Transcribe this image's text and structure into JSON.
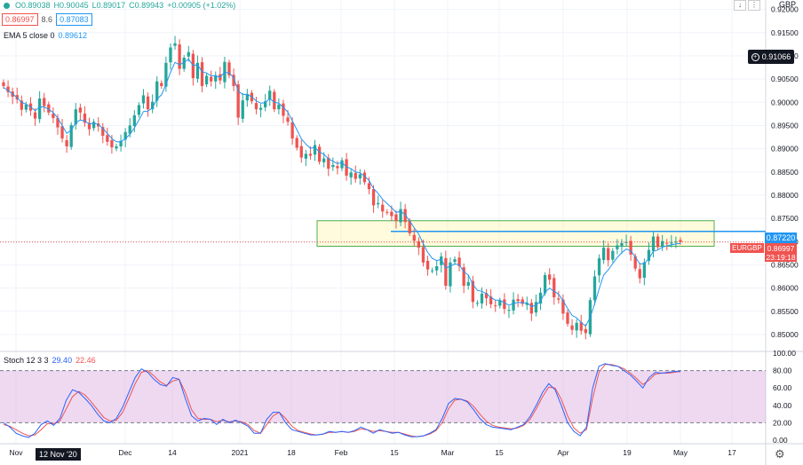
{
  "header": {
    "ohlc": {
      "open": "O0.89038",
      "high": "H0.90045",
      "low": "L0.89017",
      "close": "C0.89943",
      "change": "+0.00905 (+1.02%)"
    },
    "bid_box": "0.86997",
    "spread": "8.6",
    "ask_box": "0.87083",
    "ema_label": "EMA 5 close 0",
    "ema_value": "0.89612",
    "currency": "GBP",
    "down_arrow": "↓",
    "more": "⋮"
  },
  "indicator": {
    "label": "Stoch 12 3 3",
    "k_value": "29.40",
    "d_value": "22.46"
  },
  "price_badge": "0.91066",
  "line_tag": "0.87220",
  "price_tag": "0.86997",
  "countdown": "23:19:18",
  "symbol_tag": "EURGBP",
  "crosshair_date": "12 Nov '20",
  "colors": {
    "up": "#26a69a",
    "down": "#ef5350",
    "ema": "#2196f3",
    "stoch_k": "#2962ff",
    "stoch_d": "#ef5350",
    "band": "#e1bee7"
  },
  "chart_data": [
    {
      "type": "candlestick",
      "symbol": "EURGBP",
      "ylim": [
        0.8475,
        0.9205
      ],
      "yticks": [
        "0.92000",
        "0.91500",
        "0.91000",
        "0.90500",
        "0.90000",
        "0.89500",
        "0.89000",
        "0.88500",
        "0.88000",
        "0.87500",
        "0.87000",
        "0.86500",
        "0.86000",
        "0.85500",
        "0.85000"
      ],
      "xticks": [
        "Nov",
        "Dec",
        "14",
        "2021",
        "18",
        "Feb",
        "15",
        "Mar",
        "15",
        "Apr",
        "19",
        "May",
        "17"
      ],
      "reference_line": 0.8722,
      "zone": [
        0.869,
        0.8745
      ],
      "ohlc_close": [
        0.9035,
        0.9022,
        0.9012,
        0.9006,
        0.8984,
        0.8995,
        0.8982,
        0.8965,
        0.9008,
        0.8992,
        0.8978,
        0.8966,
        0.8946,
        0.8922,
        0.8905,
        0.8951,
        0.8985,
        0.8978,
        0.8956,
        0.8942,
        0.8958,
        0.8948,
        0.8928,
        0.8915,
        0.8903,
        0.8905,
        0.8917,
        0.8936,
        0.895,
        0.8972,
        0.8994,
        0.9015,
        0.8985,
        0.9001,
        0.9045,
        0.9035,
        0.9085,
        0.9118,
        0.9127,
        0.9072,
        0.9096,
        0.9108,
        0.9052,
        0.9085,
        0.9035,
        0.9057,
        0.9045,
        0.9058,
        0.9047,
        0.9087,
        0.9058,
        0.9035,
        0.8967,
        0.9004,
        0.9018,
        0.9002,
        0.8985,
        0.8988,
        0.9002,
        0.9025,
        0.8985,
        0.8995,
        0.8971,
        0.8958,
        0.8922,
        0.8902,
        0.8881,
        0.8889,
        0.8885,
        0.8908,
        0.8872,
        0.8879,
        0.8857,
        0.8865,
        0.8858,
        0.8875,
        0.8842,
        0.8849,
        0.8835,
        0.8845,
        0.8828,
        0.8813,
        0.8778,
        0.8783,
        0.8765,
        0.8763,
        0.8755,
        0.8744,
        0.877,
        0.8742,
        0.8718,
        0.8702,
        0.8687,
        0.8655,
        0.864,
        0.8638,
        0.8647,
        0.8668,
        0.8605,
        0.8655,
        0.8662,
        0.8647,
        0.8605,
        0.8613,
        0.857,
        0.8568,
        0.8588,
        0.8578,
        0.8565,
        0.8562,
        0.8573,
        0.8555,
        0.8553,
        0.8575,
        0.8572,
        0.8566,
        0.8568,
        0.8545,
        0.857,
        0.859,
        0.8628,
        0.8618,
        0.858,
        0.8575,
        0.8545,
        0.8523,
        0.851,
        0.8525,
        0.8508,
        0.8503,
        0.8574,
        0.8625,
        0.8664,
        0.8687,
        0.866,
        0.868,
        0.8692,
        0.8697,
        0.8699,
        0.8672,
        0.8642,
        0.8621,
        0.8655,
        0.8682,
        0.8711,
        0.8688,
        0.8701,
        0.8697,
        0.8698,
        0.87,
        0.8699
      ],
      "ema5": [
        0.9032,
        0.9025,
        0.9018,
        0.901,
        0.9,
        0.8996,
        0.899,
        0.8982,
        0.899,
        0.899,
        0.8985,
        0.8978,
        0.8966,
        0.895,
        0.8933,
        0.894,
        0.8956,
        0.8962,
        0.896,
        0.8953,
        0.8955,
        0.8952,
        0.8944,
        0.8933,
        0.8922,
        0.8915,
        0.8915,
        0.8922,
        0.8931,
        0.8945,
        0.8962,
        0.898,
        0.8981,
        0.8988,
        0.9007,
        0.9016,
        0.9039,
        0.9065,
        0.9086,
        0.9081,
        0.9086,
        0.9093,
        0.9079,
        0.9081,
        0.9066,
        0.9063,
        0.9057,
        0.9057,
        0.9054,
        0.9065,
        0.9063,
        0.9053,
        0.9024,
        0.9017,
        0.9017,
        0.9012,
        0.9003,
        0.8998,
        0.8999,
        0.9008,
        0.9,
        0.8998,
        0.8989,
        0.8979,
        0.896,
        0.8941,
        0.8921,
        0.891,
        0.8901,
        0.8903,
        0.8893,
        0.8888,
        0.8878,
        0.8873,
        0.8868,
        0.887,
        0.8861,
        0.8857,
        0.885,
        0.8848,
        0.8841,
        0.8832,
        0.8814,
        0.8804,
        0.8791,
        0.8782,
        0.8773,
        0.8763,
        0.8765,
        0.8758,
        0.8744,
        0.873,
        0.8716,
        0.8696,
        0.8677,
        0.8664,
        0.8659,
        0.8662,
        0.8643,
        0.8647,
        0.8652,
        0.865,
        0.8635,
        0.8628,
        0.8608,
        0.8595,
        0.8593,
        0.8588,
        0.858,
        0.8574,
        0.8574,
        0.8568,
        0.8563,
        0.8567,
        0.8569,
        0.8568,
        0.8568,
        0.856,
        0.8563,
        0.8572,
        0.8591,
        0.86,
        0.8593,
        0.8587,
        0.8573,
        0.8556,
        0.8541,
        0.8536,
        0.8526,
        0.8518,
        0.8537,
        0.8566,
        0.8599,
        0.8628,
        0.8639,
        0.8653,
        0.8666,
        0.8676,
        0.8684,
        0.868,
        0.8667,
        0.8652,
        0.8653,
        0.8663,
        0.8679,
        0.8682,
        0.8688,
        0.8691,
        0.8693,
        0.8695,
        0.8696
      ]
    },
    {
      "type": "line",
      "title": "Stoch 12 3 3",
      "ylim": [
        0,
        100
      ],
      "yticks": [
        "100.00",
        "80.00",
        "60.00",
        "40.00",
        "20.00",
        "0.00"
      ],
      "band": [
        20,
        80
      ],
      "k": [
        20,
        15,
        8,
        5,
        3,
        8,
        18,
        22,
        17,
        25,
        46,
        58,
        55,
        48,
        40,
        30,
        22,
        20,
        25,
        38,
        55,
        72,
        82,
        78,
        70,
        64,
        62,
        72,
        70,
        48,
        28,
        22,
        25,
        24,
        18,
        24,
        20,
        23,
        20,
        16,
        8,
        8,
        24,
        32,
        32,
        20,
        12,
        10,
        8,
        6,
        6,
        7,
        10,
        9,
        10,
        9,
        11,
        15,
        12,
        8,
        12,
        10,
        8,
        9,
        6,
        4,
        4,
        5,
        8,
        12,
        25,
        42,
        48,
        47,
        44,
        35,
        25,
        18,
        15,
        14,
        13,
        12,
        15,
        18,
        27,
        40,
        55,
        65,
        58,
        40,
        20,
        10,
        5,
        15,
        60,
        85,
        88,
        86,
        85,
        80,
        75,
        68,
        60,
        72,
        78,
        77,
        78,
        79,
        79
      ],
      "d": [
        18,
        16,
        12,
        8,
        5,
        6,
        12,
        19,
        19,
        22,
        36,
        50,
        56,
        52,
        44,
        35,
        26,
        22,
        23,
        32,
        48,
        65,
        78,
        80,
        74,
        67,
        63,
        68,
        70,
        55,
        35,
        25,
        24,
        24,
        21,
        23,
        21,
        22,
        21,
        18,
        11,
        8,
        18,
        28,
        32,
        25,
        16,
        11,
        9,
        7,
        6,
        7,
        9,
        9,
        10,
        9,
        10,
        13,
        12,
        10,
        11,
        10,
        9,
        9,
        7,
        5,
        4,
        5,
        7,
        11,
        20,
        36,
        46,
        47,
        45,
        39,
        30,
        22,
        17,
        15,
        14,
        13,
        14,
        17,
        24,
        36,
        50,
        61,
        60,
        47,
        28,
        14,
        8,
        12,
        48,
        78,
        87,
        87,
        85,
        82,
        77,
        71,
        64,
        69,
        76,
        77,
        77,
        78,
        79
      ]
    }
  ]
}
